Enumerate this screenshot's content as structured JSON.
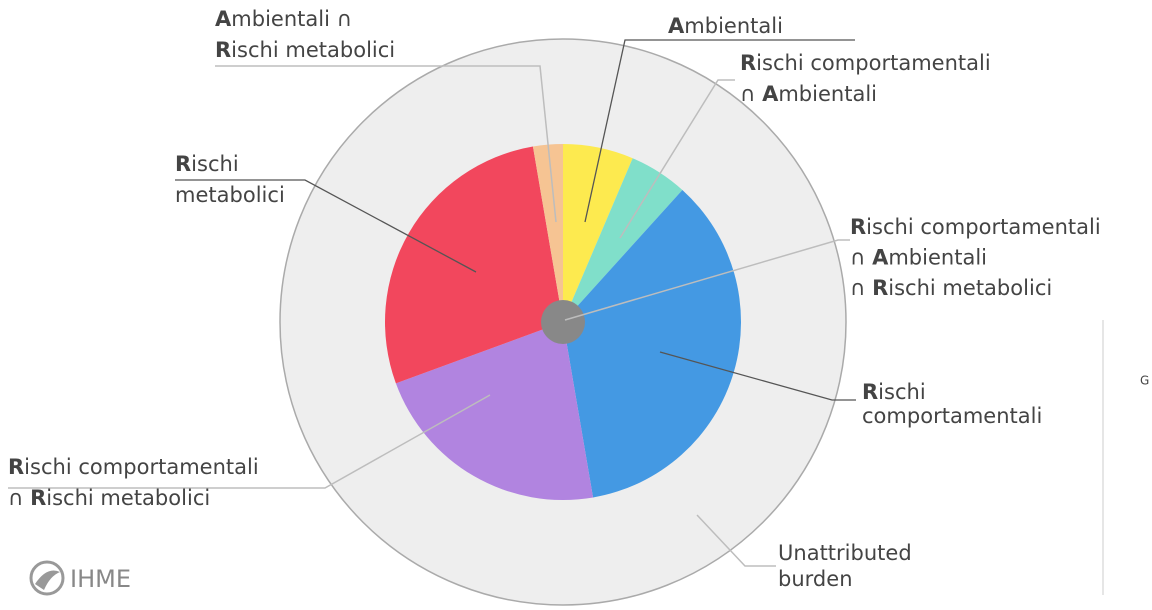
{
  "chart_data": {
    "type": "pie",
    "categories": [
      "Ambientali",
      "Rischi comportamentali ∩ Ambientali",
      "Rischi comportamentali",
      "Rischi comportamentali ∩ Rischi metabolici",
      "Rischi metabolici",
      "Ambientali ∩ Rischi metabolici"
    ],
    "values": [
      6.4,
      5.3,
      35.6,
      22.1,
      27.9,
      2.7
    ],
    "colors": [
      "#fdea4f",
      "#80dfca",
      "#4499e3",
      "#b184e0",
      "#f2475d",
      "#f6c493"
    ],
    "labels": [
      [
        "Ambientali"
      ],
      [
        "Rischi comportamentali",
        "∩ Ambientali"
      ],
      [
        "Rischi",
        "comportamentali"
      ],
      [
        "Rischi comportamentali",
        "∩ Rischi metabolici"
      ],
      [
        "Rischi",
        "metabolici"
      ],
      [
        "Ambientali ∩",
        "Rischi metabolici"
      ]
    ],
    "center_label": [
      "Rischi comportamentali",
      "∩ Ambientali",
      "∩ Rischi metabolici"
    ],
    "outer_label": [
      "Unattributed",
      "burden"
    ]
  },
  "logo": "IHME",
  "side_text": "G"
}
